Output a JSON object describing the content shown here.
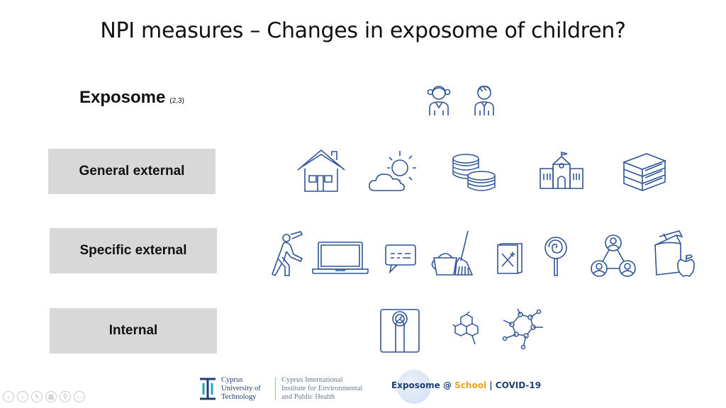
{
  "slide": {
    "title": "NPI measures – Changes in exposome of children?",
    "exposome_label": "Exposome",
    "exposome_ref": "(2,3)"
  },
  "categories": [
    {
      "label": "General external"
    },
    {
      "label": "Specific external"
    },
    {
      "label": "Internal"
    }
  ],
  "icons": {
    "children": [
      "girl-icon",
      "boy-icon"
    ],
    "general_external": [
      "house-icon",
      "weather-sun-cloud-icon",
      "coins-icon",
      "school-building-icon",
      "books-icon"
    ],
    "specific_external": [
      "stretching-person-icon",
      "laptop-icon",
      "chat-message-icon",
      "cleaning-bucket-broom-icon",
      "menu-food-icon",
      "lollipop-icon",
      "social-network-icon",
      "lunch-bag-apple-icon"
    ],
    "internal": [
      "weight-scale-icon",
      "molecule-small-icon",
      "molecule-large-icon"
    ]
  },
  "footer": {
    "cut_line1": "Cyprus",
    "cut_line2": "University of",
    "cut_line3": "Technology",
    "inst_line1": "Cyprus International",
    "inst_line2": "Institute for Environmental",
    "inst_line3": "and Public Health",
    "logo_part1": "Exposome @ ",
    "logo_part2": "School",
    "logo_part3": " | COVID-19"
  },
  "colors": {
    "icon_stroke": "#2f5496",
    "category_bg": "#d8d8d8",
    "brand_blue": "#1f3f75",
    "school_orange": "#f0a020"
  },
  "controls": [
    "previous-icon",
    "next-icon",
    "pen-icon",
    "slides-icon",
    "zoom-icon",
    "more-icon"
  ]
}
